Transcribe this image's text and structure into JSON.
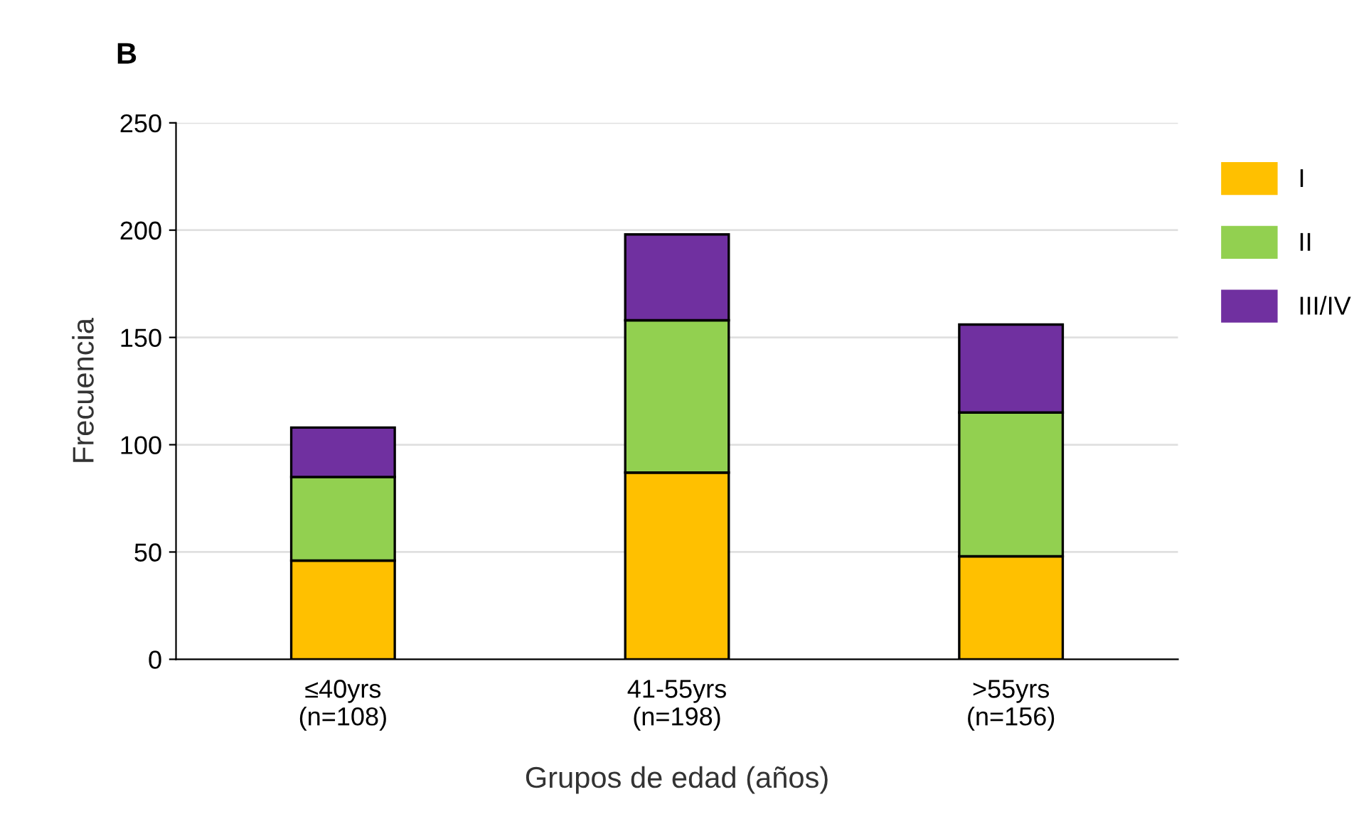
{
  "chart_data": {
    "type": "bar",
    "title": "B",
    "xlabel": "Grupos de edad (años)",
    "ylabel": "Frecuencia",
    "categories": [
      "≤40yrs\n(n=108)",
      "41-55yrs\n(n=198)",
      ">55yrs\n(n=156)"
    ],
    "stacked": true,
    "series": [
      {
        "name": "I",
        "color": "#ffc000",
        "values": [
          46,
          87,
          48
        ]
      },
      {
        "name": "II",
        "color": "#92d050",
        "values": [
          39,
          71,
          67
        ]
      },
      {
        "name": "III/IV",
        "color": "#7030a0",
        "values": [
          23,
          40,
          41
        ]
      }
    ],
    "ylim": [
      0,
      250
    ],
    "yticks": [
      0,
      50,
      100,
      150,
      200,
      250
    ],
    "grid": "y",
    "legend": "right"
  }
}
